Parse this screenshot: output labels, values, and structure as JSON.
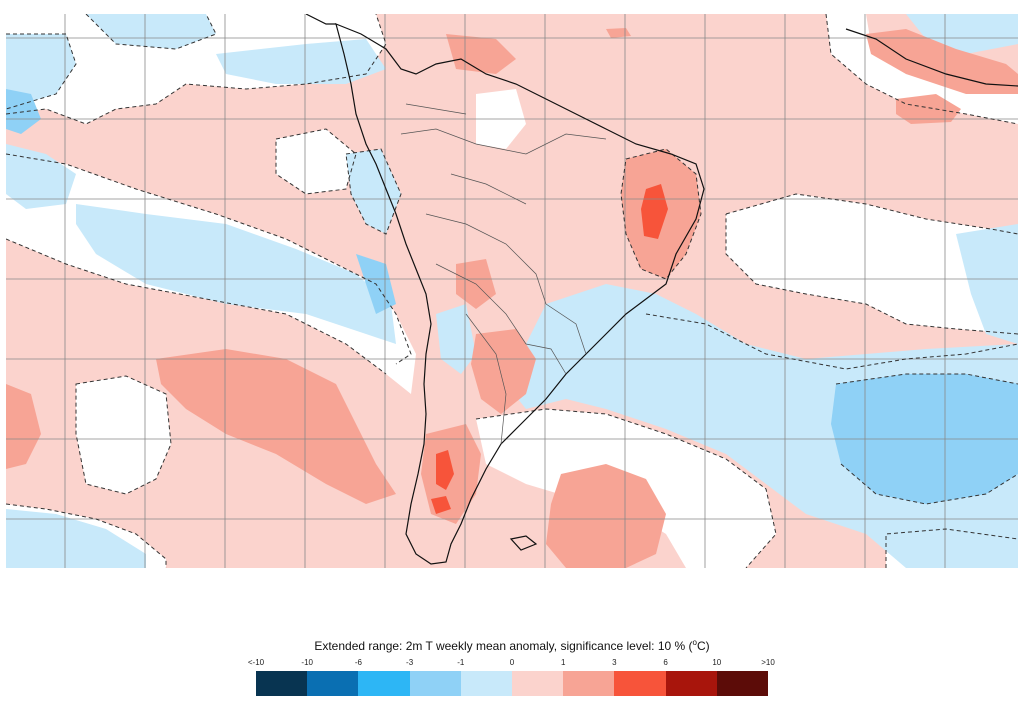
{
  "legend": {
    "title_main": "Extended range: 2m T weekly mean anomaly, significance level: 10 % (",
    "title_sup": "o",
    "title_unit": "C)",
    "labels": [
      "<-10",
      "-10",
      "-6",
      "-3",
      "-1",
      "0",
      "1",
      "3",
      "6",
      "10",
      ">10"
    ],
    "colors": [
      "#083451",
      "#0a6fb2",
      "#2db6f5",
      "#8fd1f6",
      "#c8e9fa",
      "#fbd3cd",
      "#f7a495",
      "#f7543a",
      "#a8150c",
      "#5c0c08"
    ]
  },
  "map": {
    "region": "South America and adjacent oceans",
    "colors": {
      "neutral": "#ffffff",
      "warm_light": "#fbd3cd",
      "warm_mid": "#f7a495",
      "warm_strong": "#f7543a",
      "cold_light": "#c8e9fa",
      "cold_mid": "#8fd1f6",
      "land_outline": "#111111",
      "border": "#555555",
      "grid": "#888888",
      "contour": "#333333"
    }
  }
}
